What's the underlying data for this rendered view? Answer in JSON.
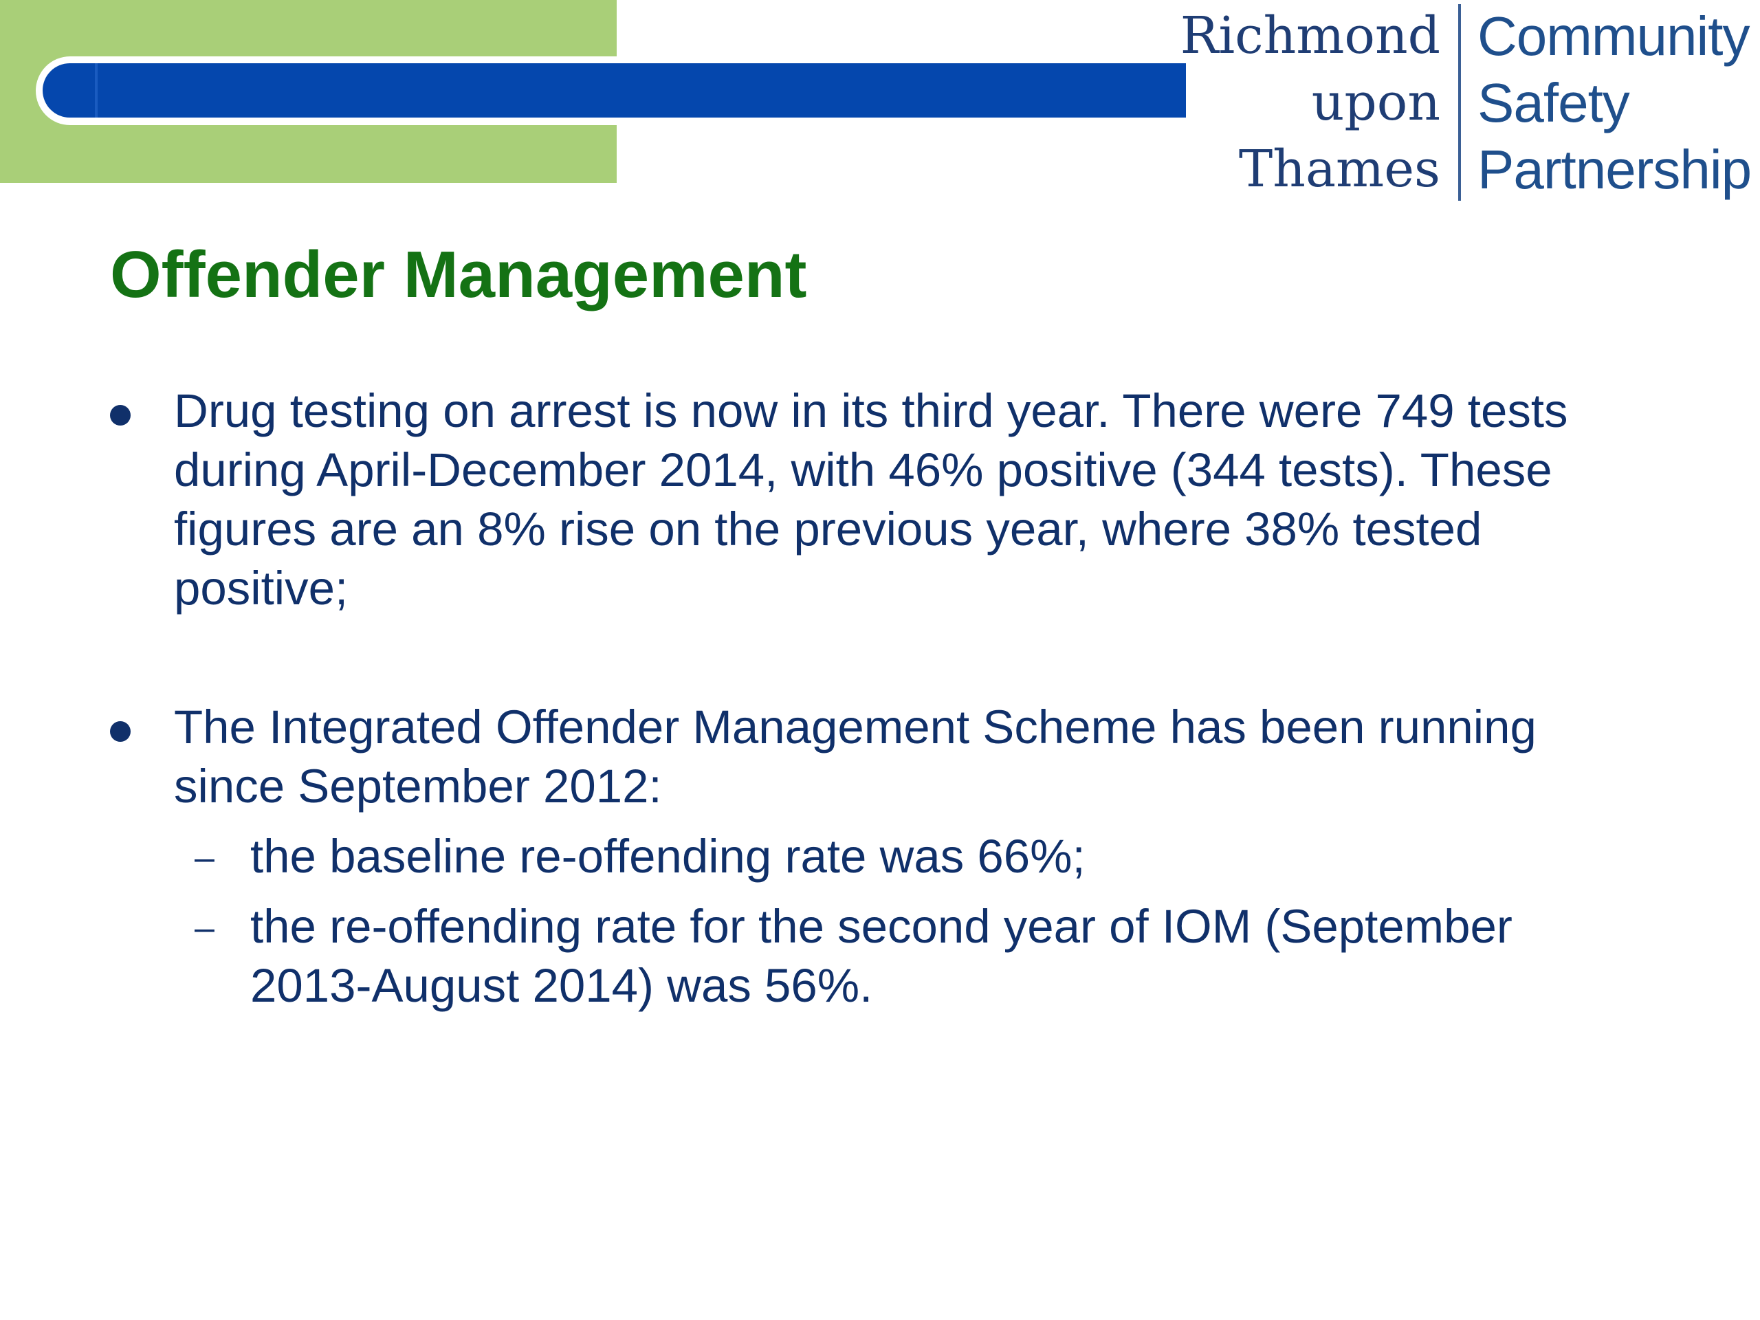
{
  "header": {
    "logo": {
      "left_lines": [
        "Richmond",
        "upon",
        "Thames"
      ],
      "right_lines": [
        "Community",
        "Safety",
        "Partnership"
      ]
    },
    "colors": {
      "green_block": "#a9cf78",
      "blue_bar": "#0547ad",
      "logo_text": "#1f3d74"
    }
  },
  "slide": {
    "title": "Offender Management",
    "title_color": "#147214",
    "text_color": "#10306a",
    "bullets": [
      {
        "text": "Drug testing on arrest is now in its third year. There were 749 tests\nduring April-December 2014, with 46% positive (344 tests). These\nfigures are an 8% rise on the previous year, where 38% tested\npositive;"
      },
      {
        "text": "The Integrated Offender Management Scheme has been running\nsince September 2012:",
        "sub_items": [
          {
            "dash": "–",
            "text": "the baseline re-offending rate was 66%;"
          },
          {
            "dash": "–",
            "text": "the re-offending rate for the second year of IOM (September\n2013-August 2014) was 56%."
          }
        ]
      }
    ]
  }
}
